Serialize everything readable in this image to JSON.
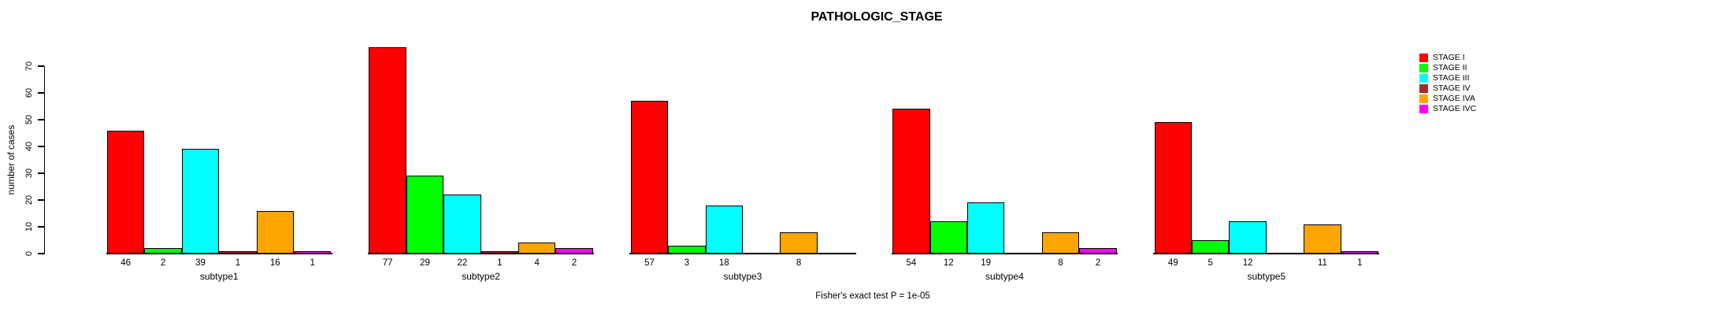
{
  "title": "PATHOLOGIC_STAGE",
  "footer_annotation": "Fisher's exact test P = 1e-05",
  "y_axis": {
    "label": "number of cases",
    "tick_labels": [
      "0",
      "10",
      "20",
      "30",
      "40",
      "50",
      "60",
      "70"
    ],
    "tick_values": [
      0,
      10,
      20,
      30,
      40,
      50,
      60,
      70
    ]
  },
  "legend": {
    "items": [
      {
        "label": "STAGE I",
        "color": "#FF0000"
      },
      {
        "label": "STAGE II",
        "color": "#00FF00"
      },
      {
        "label": "STAGE III",
        "color": "#00FFFF"
      },
      {
        "label": "STAGE IV",
        "color": "#A52A2A"
      },
      {
        "label": "STAGE IVA",
        "color": "#FFA500"
      },
      {
        "label": "STAGE IVC",
        "color": "#FF00FF"
      }
    ]
  },
  "chart_data": {
    "type": "bar",
    "title": "PATHOLOGIC_STAGE",
    "xlabel": "",
    "ylabel": "number of cases",
    "ylim": [
      0,
      70
    ],
    "grid": false,
    "legend_position": "top-right",
    "categories": [
      "subtype1",
      "subtype2",
      "subtype3",
      "subtype4",
      "subtype5"
    ],
    "series": [
      {
        "name": "STAGE I",
        "color": "#FF0000",
        "values": [
          46,
          77,
          57,
          54,
          49
        ]
      },
      {
        "name": "STAGE II",
        "color": "#00FF00",
        "values": [
          2,
          29,
          3,
          12,
          5
        ]
      },
      {
        "name": "STAGE III",
        "color": "#00FFFF",
        "values": [
          39,
          22,
          18,
          19,
          12
        ]
      },
      {
        "name": "STAGE IV",
        "color": "#A52A2A",
        "values": [
          1,
          1,
          0,
          0,
          0
        ]
      },
      {
        "name": "STAGE IVA",
        "color": "#FFA500",
        "values": [
          16,
          4,
          8,
          8,
          11
        ]
      },
      {
        "name": "STAGE IVC",
        "color": "#FF00FF",
        "values": [
          1,
          2,
          0,
          2,
          1
        ]
      }
    ],
    "bar_value_labels": "value shown under each bar, hidden when 0",
    "annotation": "Fisher's exact test P = 1e-05"
  }
}
